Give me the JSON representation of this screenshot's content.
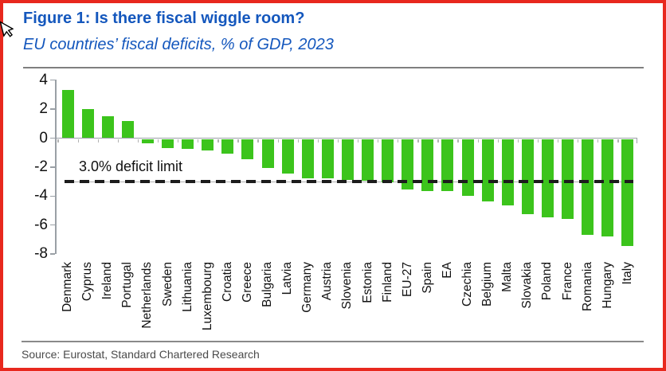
{
  "figure": {
    "title": "Figure 1: Is there fiscal wiggle room?",
    "subtitle": "EU countries’ fiscal deficits, % of GDP, 2023",
    "source": "Source: Eurostat, Standard Chartered Research"
  },
  "colors": {
    "bar_green": "#3cc41c",
    "title_blue": "#1457bd",
    "frame_red": "#e8281e",
    "axis_gray": "#9aa0a6",
    "dash_black": "#1c1c1c"
  },
  "chart_data": {
    "type": "bar",
    "title": "Figure 1: Is there fiscal wiggle room?",
    "subtitle": "EU countries’ fiscal deficits, % of GDP, 2023",
    "categories": [
      "Denmark",
      "Cyprus",
      "Ireland",
      "Portugal",
      "Netherlands",
      "Sweden",
      "Lithuania",
      "Luxembourg",
      "Croatia",
      "Greece",
      "Bulgaria",
      "Latvia",
      "Germany",
      "Austria",
      "Slovenia",
      "Estonia",
      "Finland",
      "EU-27",
      "Spain",
      "EA",
      "Czechia",
      "Belgium",
      "Malta",
      "Slovakia",
      "Poland",
      "France",
      "Romania",
      "Hungary",
      "Italy"
    ],
    "values": [
      3.3,
      2.0,
      1.5,
      1.2,
      -0.3,
      -0.6,
      -0.7,
      -0.8,
      -1.0,
      -1.4,
      -2.0,
      -2.4,
      -2.7,
      -2.7,
      -2.8,
      -2.9,
      -3.0,
      -3.5,
      -3.6,
      -3.6,
      -3.9,
      -4.3,
      -4.6,
      -5.2,
      -5.4,
      -5.5,
      -6.6,
      -6.7,
      -7.4
    ],
    "xlabel": "",
    "ylabel": "",
    "ylim": [
      -8,
      4
    ],
    "yticks": [
      4,
      2,
      0,
      -2,
      -4,
      -6,
      -8
    ],
    "grid": false,
    "legend": "none",
    "bar_color": "#3cc41c",
    "reference_line": {
      "value": -3.0,
      "label": "3.0% deficit limit",
      "style": "dashed"
    }
  }
}
